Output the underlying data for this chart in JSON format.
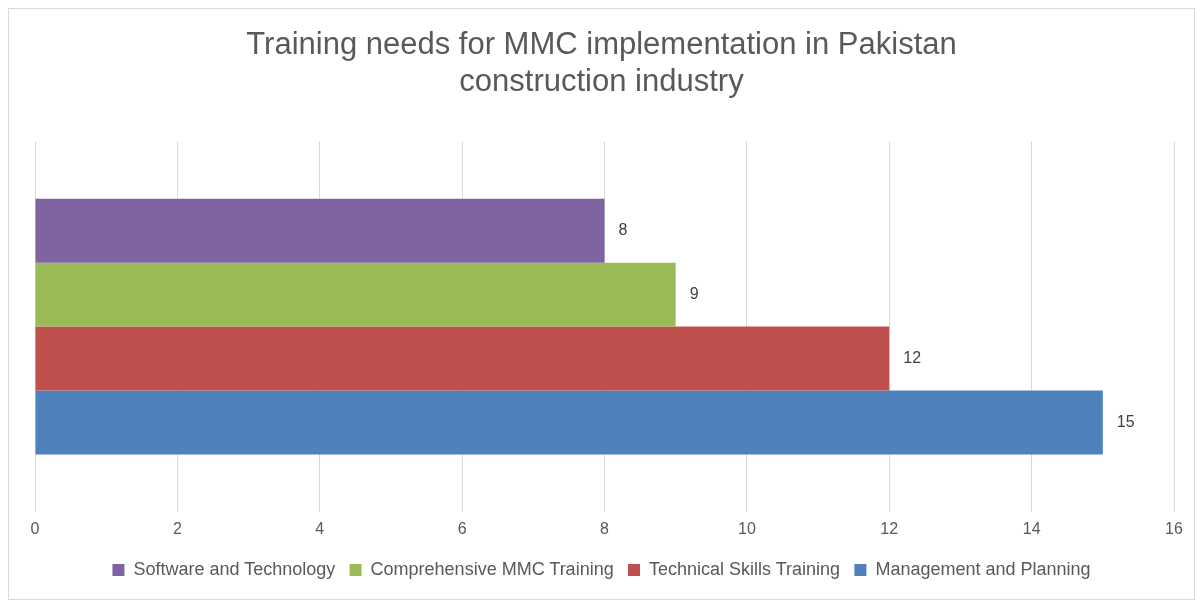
{
  "chart_data": {
    "type": "bar",
    "orientation": "horizontal",
    "title": "Training needs for MMC implementation in Pakistan construction industry",
    "categories": [
      null
    ],
    "series": [
      {
        "name": "Software and Technology",
        "color": "#8064a2",
        "values": [
          8
        ]
      },
      {
        "name": "Comprehensive MMC Training",
        "color": "#9bbb59",
        "values": [
          9
        ]
      },
      {
        "name": "Technical Skills Training",
        "color": "#c0504d",
        "values": [
          12
        ]
      },
      {
        "name": "Management and Planning",
        "color": "#4f81bd",
        "values": [
          15
        ]
      }
    ],
    "xlim": [
      0,
      16
    ],
    "xticks": [
      0,
      2,
      4,
      6,
      8,
      10,
      12,
      14,
      16
    ],
    "grid": "x",
    "data_labels": true,
    "legend": "bottom"
  }
}
